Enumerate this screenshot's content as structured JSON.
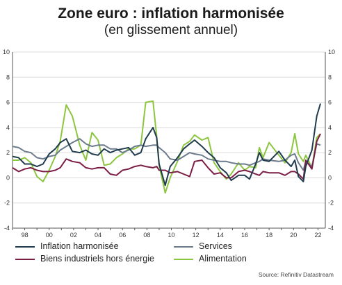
{
  "header": {
    "title": "Zone euro : inflation harmonisée",
    "subtitle": "(en glissement annuel)"
  },
  "source": "Source: Refinitiv Datastream",
  "chart_data": {
    "type": "line",
    "title": "Zone euro : inflation harmonisée",
    "subtitle": "(en glissement annuel)",
    "xlim": [
      1997,
      2022.6
    ],
    "ylim": [
      -4,
      10
    ],
    "x_ticks": [
      1998,
      2000,
      2002,
      2004,
      2006,
      2008,
      2010,
      2012,
      2014,
      2016,
      2018,
      2020,
      2022
    ],
    "x_tick_labels": [
      "98",
      "00",
      "02",
      "04",
      "06",
      "08",
      "10",
      "12",
      "14",
      "16",
      "18",
      "20",
      "22"
    ],
    "y_ticks": [
      -4,
      -2,
      0,
      2,
      4,
      6,
      8,
      10
    ],
    "y_tick_labels": [
      "-4",
      "-2",
      "0",
      "2",
      "4",
      "6",
      "8",
      "10"
    ],
    "grid": "horizontal",
    "legend_position": "bottom",
    "series": [
      {
        "name": "Inflation harmonisée",
        "color": "#1f3b4d",
        "points": [
          [
            1997,
            1.7
          ],
          [
            1997.5,
            1.6
          ],
          [
            1998,
            1.1
          ],
          [
            1998.5,
            1.1
          ],
          [
            1999,
            0.9
          ],
          [
            1999.5,
            1.1
          ],
          [
            2000,
            1.9
          ],
          [
            2000.5,
            2.3
          ],
          [
            2000.9,
            2.8
          ],
          [
            2001.4,
            3.1
          ],
          [
            2001.9,
            2.1
          ],
          [
            2002.5,
            2.0
          ],
          [
            2003,
            2.2
          ],
          [
            2003.5,
            1.9
          ],
          [
            2004,
            1.8
          ],
          [
            2004.5,
            2.3
          ],
          [
            2005,
            2.0
          ],
          [
            2005.5,
            2.2
          ],
          [
            2006,
            2.3
          ],
          [
            2006.5,
            2.4
          ],
          [
            2007,
            1.8
          ],
          [
            2007.5,
            2.0
          ],
          [
            2007.9,
            3.1
          ],
          [
            2008.5,
            4.0
          ],
          [
            2008.8,
            3.2
          ],
          [
            2009,
            1.1
          ],
          [
            2009.5,
            -0.6
          ],
          [
            2009.9,
            0.9
          ],
          [
            2010.5,
            1.6
          ],
          [
            2011,
            2.3
          ],
          [
            2011.5,
            2.7
          ],
          [
            2011.9,
            3.0
          ],
          [
            2012.5,
            2.5
          ],
          [
            2013,
            2.0
          ],
          [
            2013.5,
            1.6
          ],
          [
            2014,
            0.8
          ],
          [
            2014.5,
            0.4
          ],
          [
            2014.9,
            -0.2
          ],
          [
            2015.5,
            0.2
          ],
          [
            2016,
            0.2
          ],
          [
            2016.4,
            -0.1
          ],
          [
            2016.9,
            1.1
          ],
          [
            2017.2,
            2.0
          ],
          [
            2017.5,
            1.4
          ],
          [
            2018,
            1.3
          ],
          [
            2018.8,
            2.1
          ],
          [
            2019.3,
            1.4
          ],
          [
            2019.8,
            0.9
          ],
          [
            2020.1,
            1.4
          ],
          [
            2020.4,
            0.1
          ],
          [
            2020.8,
            -0.3
          ],
          [
            2021,
            0.9
          ],
          [
            2021.5,
            2.2
          ],
          [
            2021.9,
            4.9
          ],
          [
            2022.2,
            5.9
          ]
        ]
      },
      {
        "name": "Biens industriels hors énergie",
        "color": "#7b1d45",
        "points": [
          [
            1997,
            0.8
          ],
          [
            1997.5,
            0.5
          ],
          [
            1998,
            0.7
          ],
          [
            1998.5,
            0.8
          ],
          [
            1999,
            0.6
          ],
          [
            1999.5,
            0.5
          ],
          [
            2000,
            0.5
          ],
          [
            2000.5,
            0.6
          ],
          [
            2000.9,
            0.8
          ],
          [
            2001.4,
            1.5
          ],
          [
            2001.9,
            1.3
          ],
          [
            2002.5,
            1.2
          ],
          [
            2003,
            0.8
          ],
          [
            2003.5,
            0.7
          ],
          [
            2004,
            0.8
          ],
          [
            2004.5,
            0.8
          ],
          [
            2005,
            0.3
          ],
          [
            2005.5,
            0.2
          ],
          [
            2006,
            0.6
          ],
          [
            2006.5,
            0.7
          ],
          [
            2007,
            0.9
          ],
          [
            2007.5,
            1.0
          ],
          [
            2007.9,
            0.9
          ],
          [
            2008.5,
            0.8
          ],
          [
            2008.8,
            0.9
          ],
          [
            2009,
            0.6
          ],
          [
            2009.5,
            0.6
          ],
          [
            2009.9,
            0.4
          ],
          [
            2010.5,
            0.5
          ],
          [
            2011,
            0.3
          ],
          [
            2011.5,
            0.1
          ],
          [
            2011.9,
            1.3
          ],
          [
            2012.5,
            1.4
          ],
          [
            2013,
            0.8
          ],
          [
            2013.5,
            0.3
          ],
          [
            2014,
            0.4
          ],
          [
            2014.5,
            0.0
          ],
          [
            2014.9,
            0.0
          ],
          [
            2015.5,
            0.5
          ],
          [
            2016,
            0.6
          ],
          [
            2016.4,
            0.5
          ],
          [
            2016.9,
            0.3
          ],
          [
            2017.2,
            0.2
          ],
          [
            2017.5,
            0.5
          ],
          [
            2018,
            0.4
          ],
          [
            2018.8,
            0.4
          ],
          [
            2019.3,
            0.2
          ],
          [
            2019.8,
            0.5
          ],
          [
            2020.1,
            0.5
          ],
          [
            2020.4,
            0.3
          ],
          [
            2020.8,
            -0.1
          ],
          [
            2021,
            1.4
          ],
          [
            2021.5,
            0.7
          ],
          [
            2021.9,
            2.9
          ],
          [
            2022.2,
            3.5
          ]
        ]
      },
      {
        "name": "Services",
        "color": "#6b7b8c",
        "points": [
          [
            1997,
            2.5
          ],
          [
            1997.5,
            2.4
          ],
          [
            1998,
            2.1
          ],
          [
            1998.5,
            2.0
          ],
          [
            1999,
            1.6
          ],
          [
            1999.5,
            1.5
          ],
          [
            2000,
            1.7
          ],
          [
            2000.5,
            1.8
          ],
          [
            2000.9,
            2.2
          ],
          [
            2001.4,
            2.5
          ],
          [
            2001.9,
            2.8
          ],
          [
            2002.5,
            3.1
          ],
          [
            2003,
            2.7
          ],
          [
            2003.5,
            2.5
          ],
          [
            2004,
            2.6
          ],
          [
            2004.5,
            2.6
          ],
          [
            2005,
            2.3
          ],
          [
            2005.5,
            2.3
          ],
          [
            2006,
            2.0
          ],
          [
            2006.5,
            2.2
          ],
          [
            2007,
            2.5
          ],
          [
            2007.5,
            2.6
          ],
          [
            2007.9,
            2.5
          ],
          [
            2008.5,
            2.6
          ],
          [
            2008.8,
            2.6
          ],
          [
            2009,
            2.4
          ],
          [
            2009.5,
            2.0
          ],
          [
            2009.9,
            1.5
          ],
          [
            2010.5,
            1.4
          ],
          [
            2011,
            1.7
          ],
          [
            2011.5,
            2.0
          ],
          [
            2011.9,
            1.9
          ],
          [
            2012.5,
            1.8
          ],
          [
            2013,
            1.5
          ],
          [
            2013.5,
            1.4
          ],
          [
            2014,
            1.3
          ],
          [
            2014.5,
            1.3
          ],
          [
            2014.9,
            1.2
          ],
          [
            2015.5,
            1.1
          ],
          [
            2016,
            1.1
          ],
          [
            2016.4,
            1.0
          ],
          [
            2016.9,
            1.2
          ],
          [
            2017.2,
            1.3
          ],
          [
            2017.5,
            1.5
          ],
          [
            2018,
            1.4
          ],
          [
            2018.8,
            1.3
          ],
          [
            2019.3,
            1.4
          ],
          [
            2019.8,
            1.8
          ],
          [
            2020.1,
            1.9
          ],
          [
            2020.4,
            1.2
          ],
          [
            2020.8,
            0.6
          ],
          [
            2021,
            1.3
          ],
          [
            2021.5,
            0.9
          ],
          [
            2021.9,
            2.7
          ],
          [
            2022.2,
            2.6
          ]
        ]
      },
      {
        "name": "Alimentation",
        "color": "#8cc63f",
        "points": [
          [
            1997,
            1.4
          ],
          [
            1997.5,
            1.4
          ],
          [
            1998,
            1.6
          ],
          [
            1998.5,
            1.2
          ],
          [
            1999,
            0.1
          ],
          [
            1999.5,
            -0.3
          ],
          [
            2000,
            0.6
          ],
          [
            2000.5,
            1.7
          ],
          [
            2000.9,
            2.9
          ],
          [
            2001.4,
            5.8
          ],
          [
            2001.9,
            4.9
          ],
          [
            2002.5,
            2.6
          ],
          [
            2003,
            1.4
          ],
          [
            2003.5,
            3.6
          ],
          [
            2004,
            3.0
          ],
          [
            2004.5,
            1.0
          ],
          [
            2005,
            1.1
          ],
          [
            2005.5,
            1.6
          ],
          [
            2006,
            1.9
          ],
          [
            2006.5,
            2.3
          ],
          [
            2007,
            2.3
          ],
          [
            2007.5,
            2.6
          ],
          [
            2007.9,
            6.0
          ],
          [
            2008.5,
            6.1
          ],
          [
            2008.8,
            3.3
          ],
          [
            2009,
            1.0
          ],
          [
            2009.5,
            -1.2
          ],
          [
            2009.9,
            0.0
          ],
          [
            2010.5,
            1.3
          ],
          [
            2011,
            2.6
          ],
          [
            2011.5,
            2.9
          ],
          [
            2011.9,
            3.4
          ],
          [
            2012.5,
            3.0
          ],
          [
            2013,
            3.2
          ],
          [
            2013.5,
            1.2
          ],
          [
            2014,
            0.5
          ],
          [
            2014.5,
            -0.1
          ],
          [
            2014.9,
            0.3
          ],
          [
            2015.5,
            1.2
          ],
          [
            2016,
            0.6
          ],
          [
            2016.4,
            0.9
          ],
          [
            2016.9,
            0.8
          ],
          [
            2017.2,
            2.4
          ],
          [
            2017.5,
            1.6
          ],
          [
            2018,
            2.8
          ],
          [
            2018.8,
            1.8
          ],
          [
            2019.3,
            1.2
          ],
          [
            2019.8,
            2.0
          ],
          [
            2020.1,
            3.5
          ],
          [
            2020.4,
            1.9
          ],
          [
            2020.8,
            1.3
          ],
          [
            2021,
            1.8
          ],
          [
            2021.5,
            0.8
          ],
          [
            2021.9,
            3.2
          ],
          [
            2022.2,
            3.5
          ]
        ]
      }
    ]
  }
}
